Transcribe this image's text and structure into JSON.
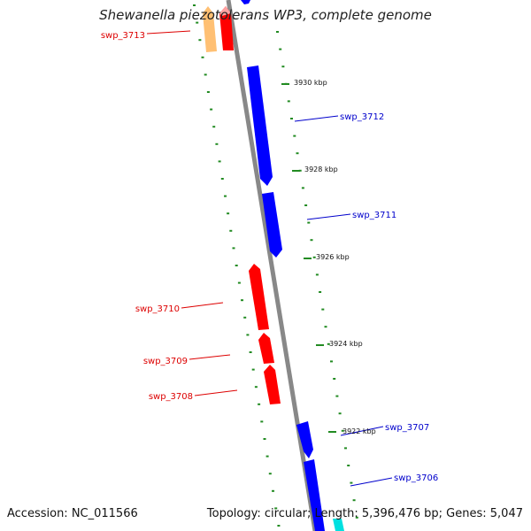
{
  "title": "Shewanella piezotolerans WP3, complete genome",
  "footer": {
    "accession": "Accession: NC_011566",
    "summary": "Topology: circular; Length: 5,396,476 bp; Genes: 5,047"
  },
  "colors": {
    "forward_gene": "#0000ff",
    "reverse_gene": "#ff0000",
    "reverse_gene_faded": "#ffb3b3",
    "other_gene": "#ff8c00",
    "cyan_gene": "#00e0e0",
    "backbone": "#888888",
    "tick": "#228b22",
    "forward_label": "#0000cc",
    "reverse_label": "#dd0000"
  },
  "ticks": [
    "3930 kbp",
    "3928 kbp",
    "3926 kbp",
    "3924 kbp",
    "3922 kbp"
  ],
  "genes": [
    {
      "id": "swp_3713",
      "strand": "reverse"
    },
    {
      "id": "swp_3712",
      "strand": "forward"
    },
    {
      "id": "swp_3711",
      "strand": "forward"
    },
    {
      "id": "swp_3710",
      "strand": "reverse"
    },
    {
      "id": "swp_3709",
      "strand": "reverse"
    },
    {
      "id": "swp_3708",
      "strand": "reverse"
    },
    {
      "id": "swp_3707",
      "strand": "forward"
    },
    {
      "id": "swp_3706",
      "strand": "forward"
    }
  ]
}
